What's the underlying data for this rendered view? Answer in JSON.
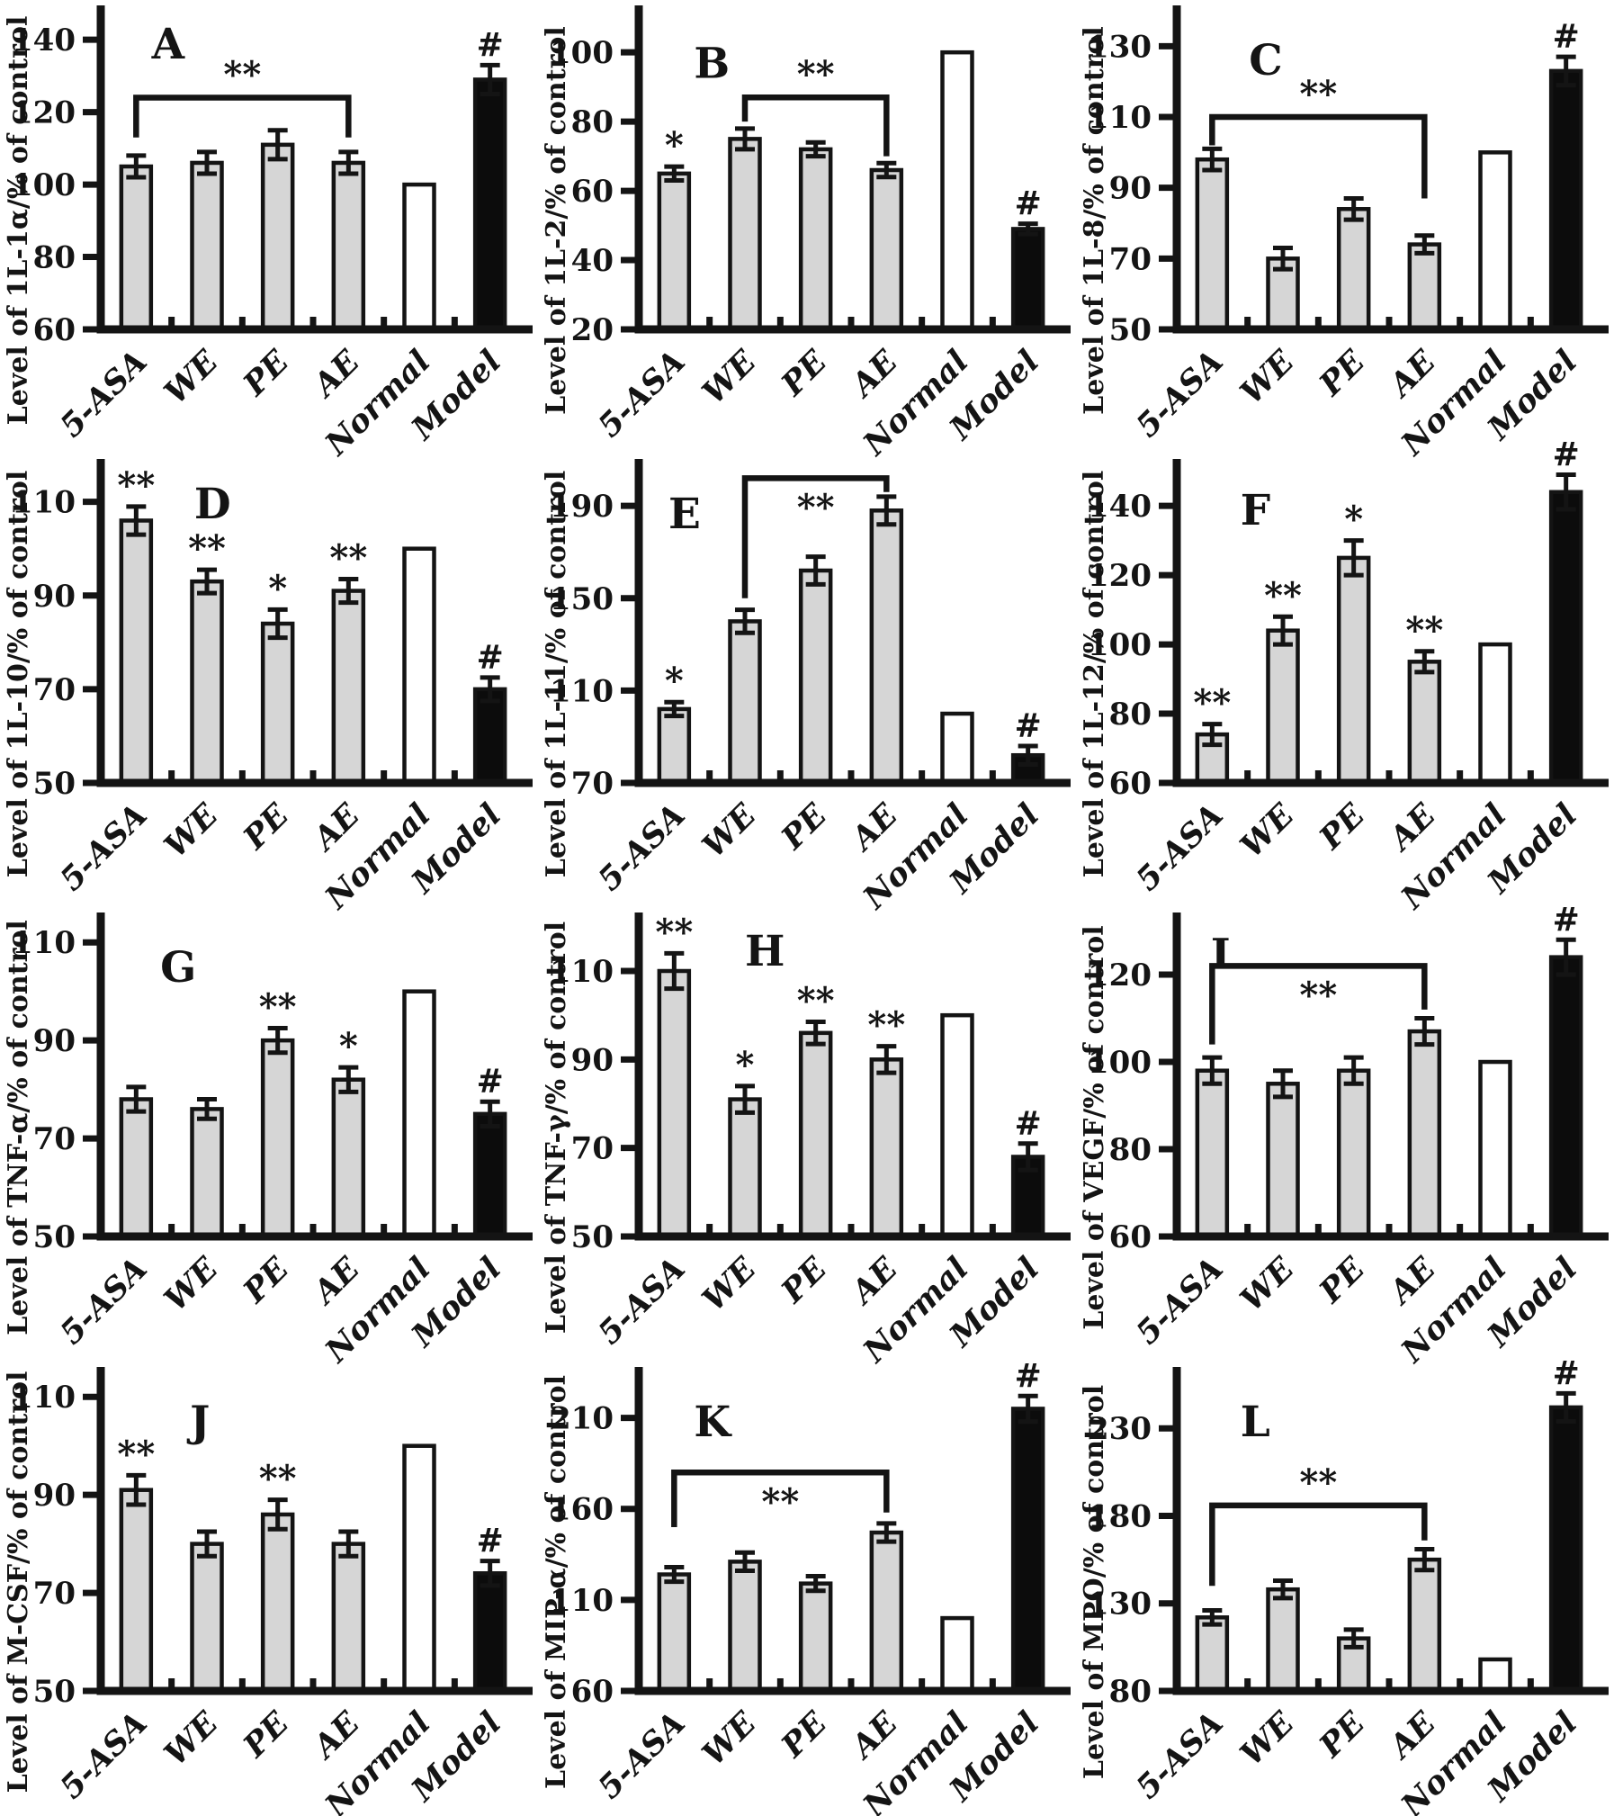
{
  "figure": {
    "background": "#ffffff",
    "ink": "#141414",
    "bar_fill": "#d6d6d6",
    "normal_fill": "#ffffff",
    "model_fill": "#0c0c0c"
  },
  "chart_data": [
    {
      "panel": "A",
      "type": "bar",
      "ylabel": "Level of 1L-1α/% of control",
      "categories": [
        "5-ASA",
        "WE",
        "PE",
        "AE",
        "Normal",
        "Model"
      ],
      "values": [
        105,
        106,
        111,
        106,
        100,
        129
      ],
      "errors": [
        3,
        3,
        4,
        3,
        0,
        4
      ],
      "sig": [
        "",
        "",
        "",
        "",
        "",
        "#"
      ],
      "yticks": [
        60,
        80,
        100,
        120,
        140
      ],
      "ylim": [
        60,
        148
      ],
      "bracket": {
        "from": 0,
        "to": 3,
        "top": 124,
        "left_drop": 113,
        "right_drop": 113,
        "label": "**",
        "label_side": "above"
      },
      "letter_pos": [
        0.12,
        0.02
      ]
    },
    {
      "panel": "B",
      "type": "bar",
      "ylabel": "Level of 1L-2/% of control",
      "categories": [
        "5-ASA",
        "WE",
        "PE",
        "AE",
        "Normal",
        "Model"
      ],
      "values": [
        65,
        75,
        72,
        66,
        100,
        49
      ],
      "errors": [
        2,
        3,
        2,
        2,
        0,
        1.5
      ],
      "sig": [
        "*",
        "",
        "",
        "",
        "",
        "#"
      ],
      "yticks": [
        20,
        40,
        60,
        80,
        100
      ],
      "ylim": [
        20,
        112
      ],
      "bracket": {
        "from": 1,
        "to": 3,
        "top": 87,
        "left_drop": 80,
        "right_drop": 70,
        "label": "**",
        "label_side": "above"
      },
      "letter_pos": [
        0.13,
        0.08
      ]
    },
    {
      "panel": "C",
      "type": "bar",
      "ylabel": "Level of 1L-8/% of control",
      "categories": [
        "5-ASA",
        "WE",
        "PE",
        "AE",
        "Normal",
        "Model"
      ],
      "values": [
        98,
        70,
        84,
        74,
        100,
        123
      ],
      "errors": [
        3,
        3,
        3,
        2.5,
        0,
        4
      ],
      "sig": [
        "",
        "",
        "",
        "",
        "",
        "#"
      ],
      "yticks": [
        50,
        70,
        90,
        110,
        130
      ],
      "ylim": [
        50,
        140
      ],
      "bracket": {
        "from": 0,
        "to": 3,
        "top": 110,
        "left_drop": 102,
        "right_drop": 87,
        "label": "**",
        "label_side": "above"
      },
      "letter_pos": [
        0.17,
        0.07
      ]
    },
    {
      "panel": "D",
      "type": "bar",
      "ylabel": "Level of 1L-10/% of control",
      "categories": [
        "5-ASA",
        "WE",
        "PE",
        "AE",
        "Normal",
        "Model"
      ],
      "values": [
        106,
        93,
        84,
        91,
        100,
        70
      ],
      "errors": [
        3,
        2.5,
        3,
        2.5,
        0,
        2.5
      ],
      "sig": [
        "**",
        "**",
        "*",
        "**",
        "",
        "#"
      ],
      "yticks": [
        50,
        70,
        90,
        110
      ],
      "ylim": [
        50,
        118
      ],
      "bracket": null,
      "letter_pos": [
        0.22,
        0.04
      ]
    },
    {
      "panel": "E",
      "type": "bar",
      "ylabel": "Level of 1L-11/% of control",
      "categories": [
        "5-ASA",
        "WE",
        "PE",
        "AE",
        "Normal",
        "Model"
      ],
      "values": [
        102,
        140,
        162,
        188,
        100,
        82
      ],
      "errors": [
        3,
        5,
        6,
        6,
        0,
        4
      ],
      "sig": [
        "*",
        "",
        "",
        "",
        "",
        "#"
      ],
      "yticks": [
        70,
        110,
        150,
        190
      ],
      "ylim": [
        70,
        208
      ],
      "bracket": {
        "from": 1,
        "to": 3,
        "top": 202,
        "left_drop": 150,
        "right_drop": 196,
        "label": "**",
        "label_side": "below"
      },
      "letter_pos": [
        0.07,
        0.07
      ]
    },
    {
      "panel": "F",
      "type": "bar",
      "ylabel": "Level of 1L-12/% of control",
      "categories": [
        "5-ASA",
        "WE",
        "PE",
        "AE",
        "Normal",
        "Model"
      ],
      "values": [
        74,
        104,
        125,
        95,
        100,
        144
      ],
      "errors": [
        3,
        4,
        5,
        3,
        0,
        5
      ],
      "sig": [
        "**",
        "**",
        "*",
        "**",
        "",
        "#"
      ],
      "yticks": [
        60,
        80,
        100,
        120,
        140
      ],
      "ylim": [
        60,
        152
      ],
      "bracket": null,
      "letter_pos": [
        0.15,
        0.06
      ]
    },
    {
      "panel": "G",
      "type": "bar",
      "ylabel": "Level of TNF-α/% of control",
      "categories": [
        "5-ASA",
        "WE",
        "PE",
        "AE",
        "Normal",
        "Model"
      ],
      "values": [
        78,
        76,
        90,
        82,
        100,
        75
      ],
      "errors": [
        2.5,
        2,
        2.5,
        2.5,
        0,
        2.5
      ],
      "sig": [
        "",
        "",
        "**",
        "*",
        "",
        "#"
      ],
      "yticks": [
        50,
        70,
        90,
        110
      ],
      "ylim": [
        50,
        115
      ],
      "bracket": null,
      "letter_pos": [
        0.14,
        0.07
      ]
    },
    {
      "panel": "H",
      "type": "bar",
      "ylabel": "Level of TNF-γ/% of control",
      "categories": [
        "5-ASA",
        "WE",
        "PE",
        "AE",
        "Normal",
        "Model"
      ],
      "values": [
        110,
        81,
        96,
        90,
        100,
        68
      ],
      "errors": [
        4,
        3,
        2.5,
        3,
        0,
        3
      ],
      "sig": [
        "**",
        "*",
        "**",
        "**",
        "",
        "#"
      ],
      "yticks": [
        50,
        70,
        90,
        110
      ],
      "ylim": [
        50,
        122
      ],
      "bracket": null,
      "letter_pos": [
        0.25,
        0.02
      ]
    },
    {
      "panel": "I",
      "type": "bar",
      "ylabel": "Level of VEGF/% of control",
      "categories": [
        "5-ASA",
        "WE",
        "PE",
        "AE",
        "Normal",
        "Model"
      ],
      "values": [
        98,
        95,
        98,
        107,
        100,
        124
      ],
      "errors": [
        3,
        3,
        3,
        3,
        0,
        4
      ],
      "sig": [
        "",
        "",
        "",
        "",
        "",
        "#"
      ],
      "yticks": [
        60,
        80,
        100,
        120
      ],
      "ylim": [
        60,
        133
      ],
      "bracket": {
        "from": 0,
        "to": 3,
        "top": 122,
        "left_drop": 104,
        "right_drop": 112,
        "label": "**",
        "label_side": "below"
      },
      "letter_pos": [
        0.08,
        0.03
      ]
    },
    {
      "panel": "J",
      "type": "bar",
      "ylabel": "Level of M-CSF/% of control",
      "categories": [
        "5-ASA",
        "WE",
        "PE",
        "AE",
        "Normal",
        "Model"
      ],
      "values": [
        91,
        80,
        86,
        80,
        100,
        74
      ],
      "errors": [
        3,
        2.5,
        3,
        2.5,
        0,
        2.5
      ],
      "sig": [
        "**",
        "",
        "**",
        "",
        "",
        "#"
      ],
      "yticks": [
        50,
        70,
        90,
        110
      ],
      "ylim": [
        50,
        115
      ],
      "bracket": null,
      "letter_pos": [
        0.21,
        0.07
      ]
    },
    {
      "panel": "K",
      "type": "bar",
      "ylabel": "Level of MIP-α/% of control",
      "categories": [
        "5-ASA",
        "WE",
        "PE",
        "AE",
        "Normal",
        "Model"
      ],
      "values": [
        124,
        131,
        119,
        147,
        100,
        215
      ],
      "errors": [
        4,
        5,
        4,
        5,
        0,
        7
      ],
      "sig": [
        "",
        "",
        "",
        "",
        "",
        "#"
      ],
      "yticks": [
        60,
        110,
        160,
        210
      ],
      "ylim": [
        60,
        235
      ],
      "bracket": {
        "from": 0,
        "to": 3,
        "top": 180,
        "left_drop": 150,
        "right_drop": 158,
        "label": "**",
        "label_side": "below"
      },
      "letter_pos": [
        0.13,
        0.07
      ]
    },
    {
      "panel": "L",
      "type": "bar",
      "ylabel": "Level of MPO/% of control",
      "categories": [
        "5-ASA",
        "WE",
        "PE",
        "AE",
        "Normal",
        "Model"
      ],
      "values": [
        122,
        138,
        110,
        155,
        98,
        242
      ],
      "errors": [
        4,
        5,
        5,
        6,
        0,
        8
      ],
      "sig": [
        "",
        "",
        "",
        "",
        "",
        "#"
      ],
      "yticks": [
        80,
        130,
        180,
        230
      ],
      "ylim": [
        80,
        262
      ],
      "bracket": {
        "from": 0,
        "to": 3,
        "top": 186,
        "left_drop": 140,
        "right_drop": 166,
        "label": "**",
        "label_side": "above"
      },
      "letter_pos": [
        0.15,
        0.07
      ]
    }
  ]
}
